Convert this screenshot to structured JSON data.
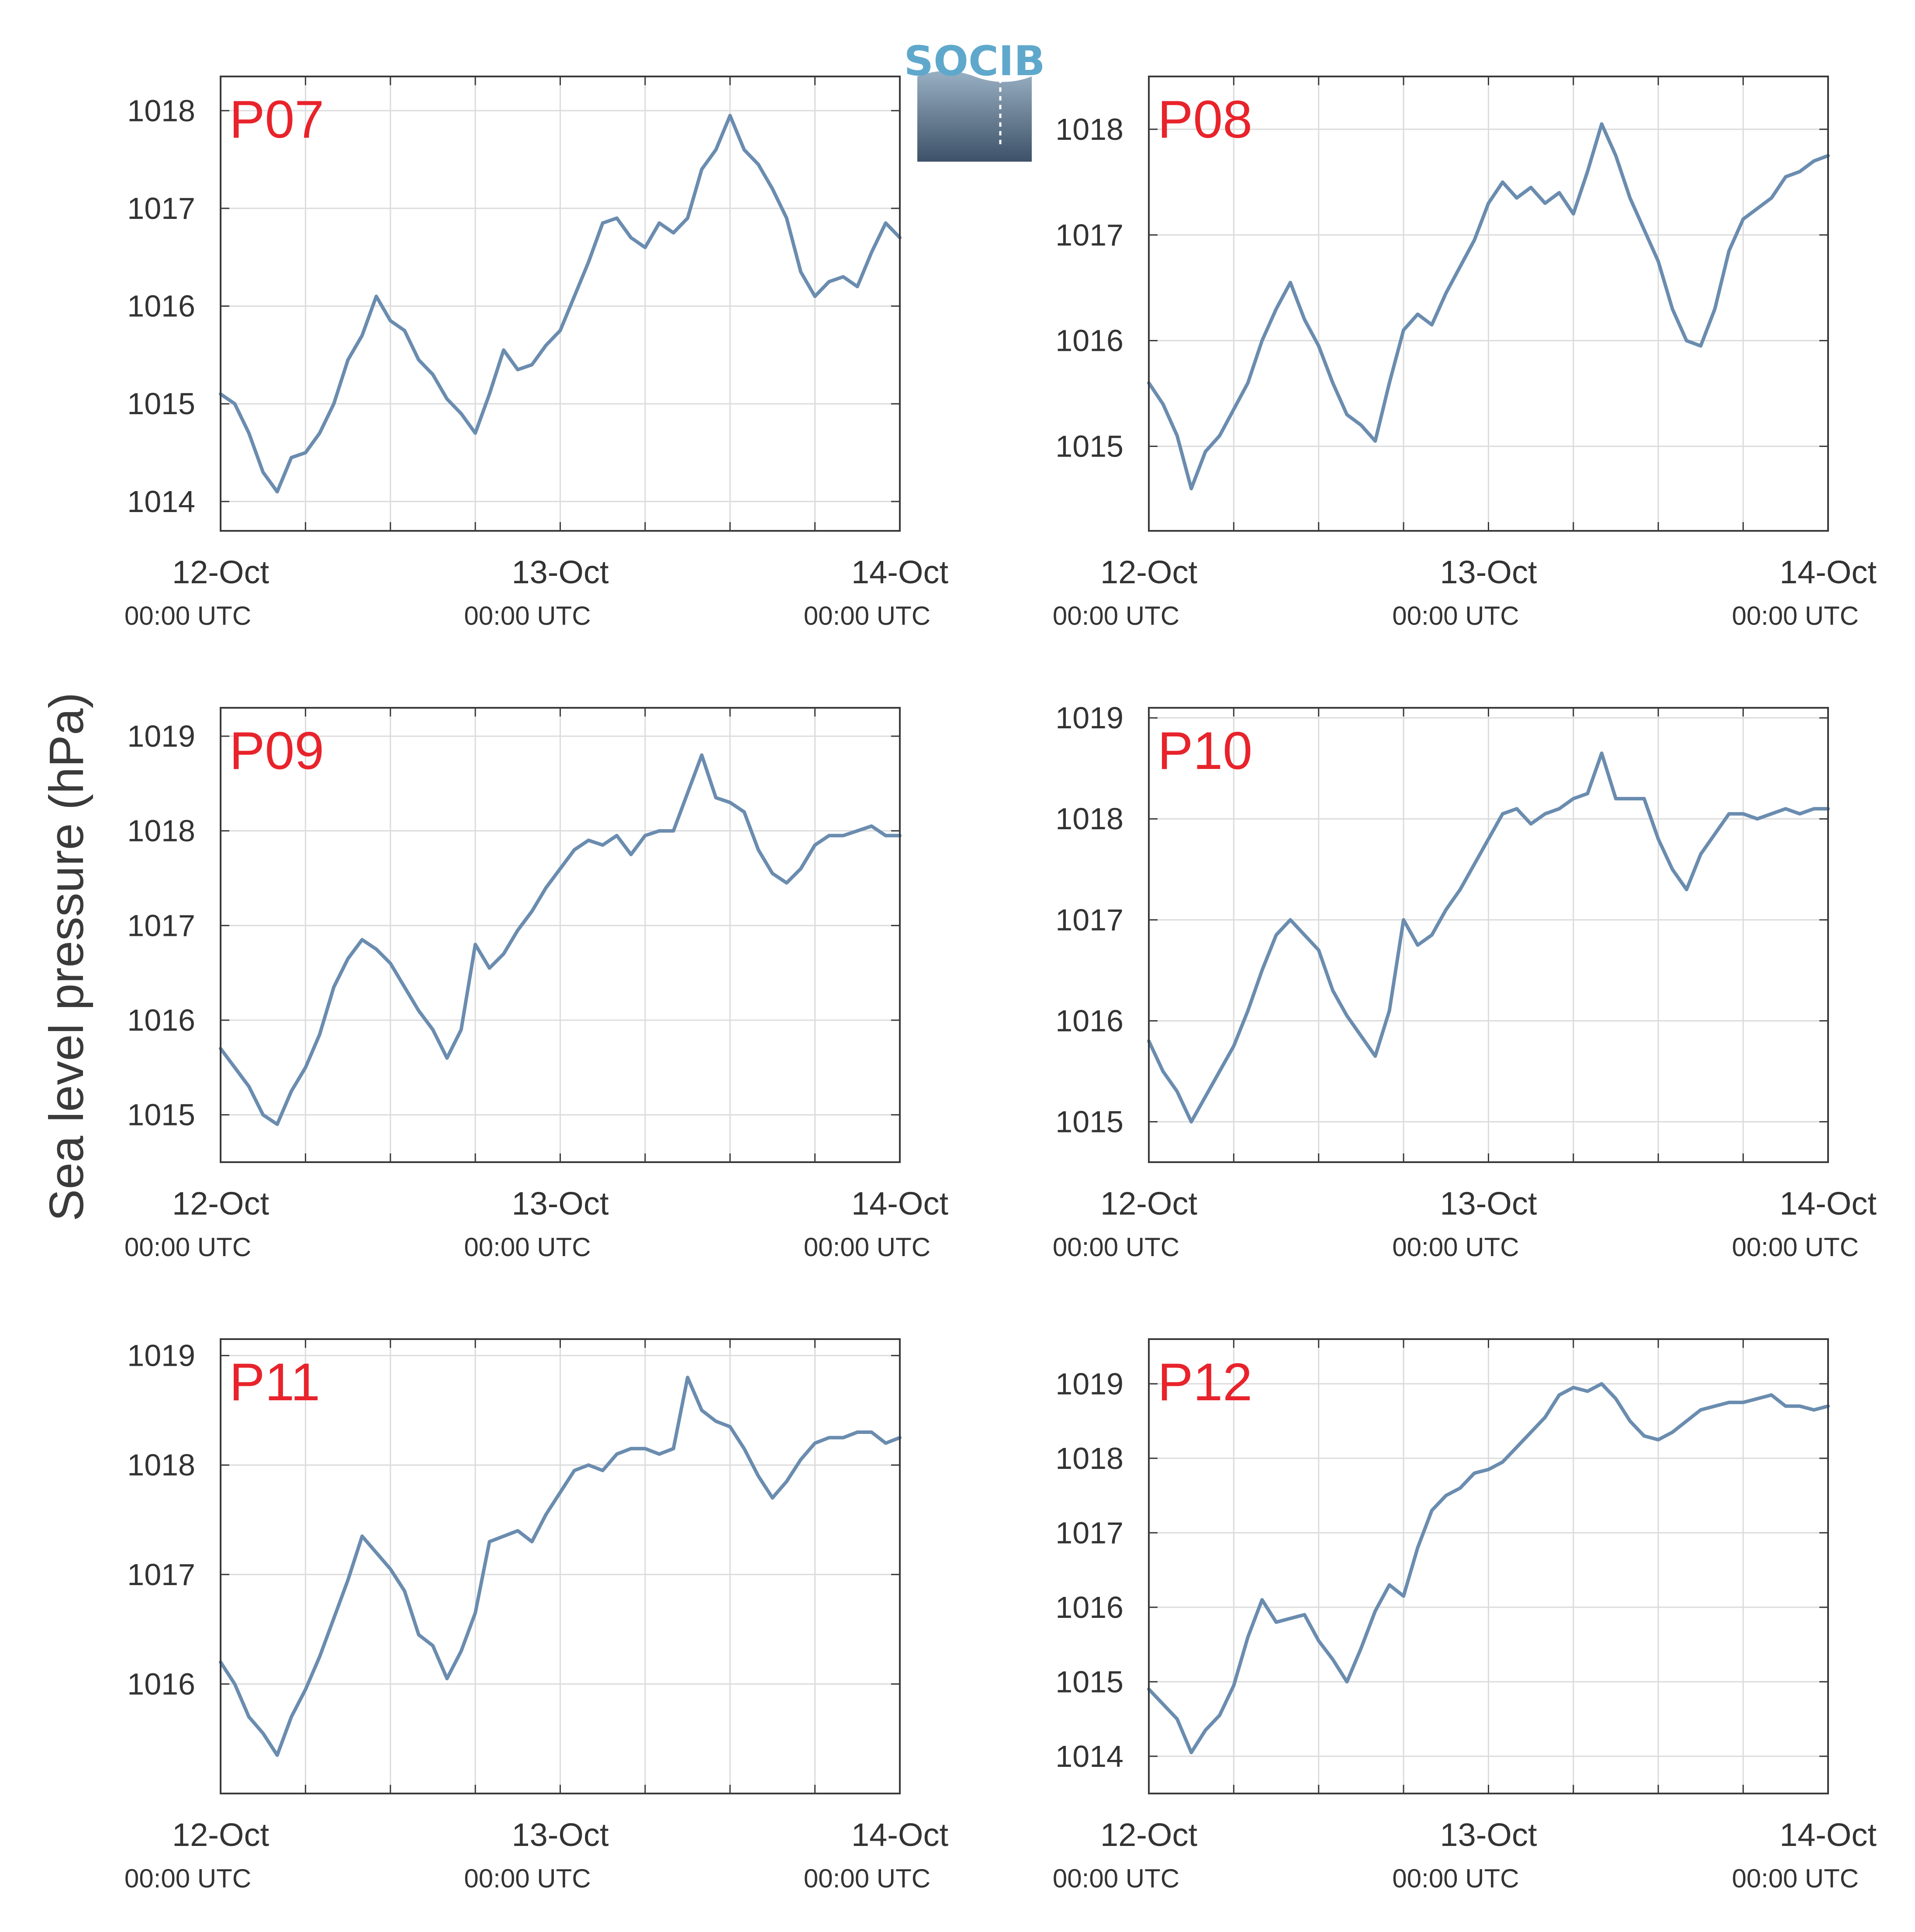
{
  "figure": {
    "ylabel": "Sea level pressure (hPa)",
    "logo_text": "SOCIB"
  },
  "colors": {
    "line": "#6a8caf",
    "panel_label": "#e8232b",
    "grid": "#dcdcdc",
    "axes": "#3a3a3a",
    "logo_top": "#5fa8cc",
    "logo_bottom": "#3d5268"
  },
  "x_ticks": [
    {
      "date": "12-Oct",
      "time": "00:00 UTC"
    },
    {
      "date": "13-Oct",
      "time": "00:00 UTC"
    },
    {
      "date": "14-Oct",
      "time": "00:00 UTC"
    }
  ],
  "chart_data": [
    {
      "type": "line",
      "panel": "P07",
      "x_unit": "hours since 12-Oct 00:00 UTC",
      "xlim": [
        0,
        48
      ],
      "ylim": [
        1013.7,
        1018.35
      ],
      "yticks": [
        1014,
        1015,
        1016,
        1017,
        1018
      ],
      "x": [
        0,
        1,
        2,
        3,
        4,
        5,
        6,
        7,
        8,
        9,
        10,
        11,
        12,
        13,
        14,
        15,
        16,
        17,
        18,
        19,
        20,
        21,
        22,
        23,
        24,
        25,
        26,
        27,
        28,
        29,
        30,
        31,
        32,
        33,
        34,
        35,
        36,
        37,
        38,
        39,
        40,
        41,
        42,
        43,
        44,
        45,
        46,
        47,
        48
      ],
      "y": [
        1015.1,
        1015.0,
        1014.7,
        1014.3,
        1014.1,
        1014.45,
        1014.5,
        1014.7,
        1015.0,
        1015.45,
        1015.7,
        1016.1,
        1015.85,
        1015.75,
        1015.45,
        1015.3,
        1015.05,
        1014.9,
        1014.7,
        1015.1,
        1015.55,
        1015.35,
        1015.4,
        1015.6,
        1015.75,
        1016.1,
        1016.45,
        1016.85,
        1016.9,
        1016.7,
        1016.6,
        1016.85,
        1016.75,
        1016.9,
        1017.4,
        1017.6,
        1017.95,
        1017.6,
        1017.45,
        1017.2,
        1016.9,
        1016.35,
        1016.1,
        1016.25,
        1016.3,
        1016.2,
        1016.55,
        1016.85,
        1016.7
      ]
    },
    {
      "type": "line",
      "panel": "P08",
      "x_unit": "hours since 12-Oct 00:00 UTC",
      "xlim": [
        0,
        48
      ],
      "ylim": [
        1014.2,
        1018.5
      ],
      "yticks": [
        1015,
        1016,
        1017,
        1018
      ],
      "x": [
        0,
        1,
        2,
        3,
        4,
        5,
        6,
        7,
        8,
        9,
        10,
        11,
        12,
        13,
        14,
        15,
        16,
        17,
        18,
        19,
        20,
        21,
        22,
        23,
        24,
        25,
        26,
        27,
        28,
        29,
        30,
        31,
        32,
        33,
        34,
        35,
        36,
        37,
        38,
        39,
        40,
        41,
        42,
        43,
        44,
        45,
        46,
        47,
        48
      ],
      "y": [
        1015.6,
        1015.4,
        1015.1,
        1014.6,
        1014.95,
        1015.1,
        1015.35,
        1015.6,
        1016.0,
        1016.3,
        1016.55,
        1016.2,
        1015.95,
        1015.6,
        1015.3,
        1015.2,
        1015.05,
        1015.6,
        1016.1,
        1016.25,
        1016.15,
        1016.45,
        1016.7,
        1016.95,
        1017.3,
        1017.5,
        1017.35,
        1017.45,
        1017.3,
        1017.4,
        1017.2,
        1017.6,
        1018.05,
        1017.75,
        1017.35,
        1017.05,
        1016.75,
        1016.3,
        1016.0,
        1015.95,
        1016.3,
        1016.85,
        1017.15,
        1017.25,
        1017.35,
        1017.55,
        1017.6,
        1017.7,
        1017.75
      ]
    },
    {
      "type": "line",
      "panel": "P09",
      "x_unit": "hours since 12-Oct 00:00 UTC",
      "xlim": [
        0,
        48
      ],
      "ylim": [
        1014.5,
        1019.3
      ],
      "yticks": [
        1015,
        1016,
        1017,
        1018,
        1019
      ],
      "x": [
        0,
        1,
        2,
        3,
        4,
        5,
        6,
        7,
        8,
        9,
        10,
        11,
        12,
        13,
        14,
        15,
        16,
        17,
        18,
        19,
        20,
        21,
        22,
        23,
        24,
        25,
        26,
        27,
        28,
        29,
        30,
        31,
        32,
        33,
        34,
        35,
        36,
        37,
        38,
        39,
        40,
        41,
        42,
        43,
        44,
        45,
        46,
        47,
        48
      ],
      "y": [
        1015.7,
        1015.5,
        1015.3,
        1015.0,
        1014.9,
        1015.25,
        1015.5,
        1015.85,
        1016.35,
        1016.65,
        1016.85,
        1016.75,
        1016.6,
        1016.35,
        1016.1,
        1015.9,
        1015.6,
        1015.9,
        1016.8,
        1016.55,
        1016.7,
        1016.95,
        1017.15,
        1017.4,
        1017.6,
        1017.8,
        1017.9,
        1017.85,
        1017.95,
        1017.75,
        1017.95,
        1018.0,
        1018.0,
        1018.4,
        1018.8,
        1018.35,
        1018.3,
        1018.2,
        1017.8,
        1017.55,
        1017.45,
        1017.6,
        1017.85,
        1017.95,
        1017.95,
        1018.0,
        1018.05,
        1017.95,
        1017.95
      ]
    },
    {
      "type": "line",
      "panel": "P10",
      "x_unit": "hours since 12-Oct 00:00 UTC",
      "xlim": [
        0,
        48
      ],
      "ylim": [
        1014.6,
        1019.1
      ],
      "yticks": [
        1015,
        1016,
        1017,
        1018,
        1019
      ],
      "x": [
        0,
        1,
        2,
        3,
        4,
        5,
        6,
        7,
        8,
        9,
        10,
        11,
        12,
        13,
        14,
        15,
        16,
        17,
        18,
        19,
        20,
        21,
        22,
        23,
        24,
        25,
        26,
        27,
        28,
        29,
        30,
        31,
        32,
        33,
        34,
        35,
        36,
        37,
        38,
        39,
        40,
        41,
        42,
        43,
        44,
        45,
        46,
        47,
        48
      ],
      "y": [
        1015.8,
        1015.5,
        1015.3,
        1015.0,
        1015.25,
        1015.5,
        1015.75,
        1016.1,
        1016.5,
        1016.85,
        1017.0,
        1016.85,
        1016.7,
        1016.3,
        1016.05,
        1015.85,
        1015.65,
        1016.1,
        1017.0,
        1016.75,
        1016.85,
        1017.1,
        1017.3,
        1017.55,
        1017.8,
        1018.05,
        1018.1,
        1017.95,
        1018.05,
        1018.1,
        1018.2,
        1018.25,
        1018.65,
        1018.2,
        1018.2,
        1018.2,
        1017.8,
        1017.5,
        1017.3,
        1017.65,
        1017.85,
        1018.05,
        1018.05,
        1018.0,
        1018.05,
        1018.1,
        1018.05,
        1018.1,
        1018.1
      ]
    },
    {
      "type": "line",
      "panel": "P11",
      "x_unit": "hours since 12-Oct 00:00 UTC",
      "xlim": [
        0,
        48
      ],
      "ylim": [
        1015.0,
        1019.15
      ],
      "yticks": [
        1016,
        1017,
        1018,
        1019
      ],
      "x": [
        0,
        1,
        2,
        3,
        4,
        5,
        6,
        7,
        8,
        9,
        10,
        11,
        12,
        13,
        14,
        15,
        16,
        17,
        18,
        19,
        20,
        21,
        22,
        23,
        24,
        25,
        26,
        27,
        28,
        29,
        30,
        31,
        32,
        33,
        34,
        35,
        36,
        37,
        38,
        39,
        40,
        41,
        42,
        43,
        44,
        45,
        46,
        47,
        48
      ],
      "y": [
        1016.2,
        1016.0,
        1015.7,
        1015.55,
        1015.35,
        1015.7,
        1015.95,
        1016.25,
        1016.6,
        1016.95,
        1017.35,
        1017.2,
        1017.05,
        1016.85,
        1016.45,
        1016.35,
        1016.05,
        1016.3,
        1016.65,
        1017.3,
        1017.35,
        1017.4,
        1017.3,
        1017.55,
        1017.75,
        1017.95,
        1018.0,
        1017.95,
        1018.1,
        1018.15,
        1018.15,
        1018.1,
        1018.15,
        1018.8,
        1018.5,
        1018.4,
        1018.35,
        1018.15,
        1017.9,
        1017.7,
        1017.85,
        1018.05,
        1018.2,
        1018.25,
        1018.25,
        1018.3,
        1018.3,
        1018.2,
        1018.25
      ]
    },
    {
      "type": "line",
      "panel": "P12",
      "x_unit": "hours since 12-Oct 00:00 UTC",
      "xlim": [
        0,
        48
      ],
      "ylim": [
        1013.5,
        1019.6
      ],
      "yticks": [
        1014,
        1015,
        1016,
        1017,
        1018,
        1019
      ],
      "x": [
        0,
        1,
        2,
        3,
        4,
        5,
        6,
        7,
        8,
        9,
        10,
        11,
        12,
        13,
        14,
        15,
        16,
        17,
        18,
        19,
        20,
        21,
        22,
        23,
        24,
        25,
        26,
        27,
        28,
        29,
        30,
        31,
        32,
        33,
        34,
        35,
        36,
        37,
        38,
        39,
        40,
        41,
        42,
        43,
        44,
        45,
        46,
        47,
        48
      ],
      "y": [
        1014.9,
        1014.7,
        1014.5,
        1014.05,
        1014.35,
        1014.55,
        1014.95,
        1015.6,
        1016.1,
        1015.8,
        1015.85,
        1015.9,
        1015.55,
        1015.3,
        1015.0,
        1015.45,
        1015.95,
        1016.3,
        1016.15,
        1016.8,
        1017.3,
        1017.5,
        1017.6,
        1017.8,
        1017.85,
        1017.95,
        1018.15,
        1018.35,
        1018.55,
        1018.85,
        1018.95,
        1018.9,
        1019.0,
        1018.8,
        1018.5,
        1018.3,
        1018.25,
        1018.35,
        1018.5,
        1018.65,
        1018.7,
        1018.75,
        1018.75,
        1018.8,
        1018.85,
        1018.7,
        1018.7,
        1018.65,
        1018.7
      ]
    }
  ]
}
